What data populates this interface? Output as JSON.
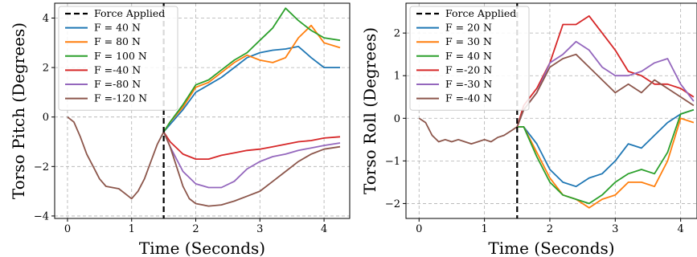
{
  "chart_data": [
    {
      "type": "line",
      "xlabel": "Time (Seconds)",
      "ylabel": "Torso Pitch (Degrees)",
      "xlim": [
        -0.2,
        4.4
      ],
      "ylim": [
        -4.1,
        4.6
      ],
      "xticks": [
        0,
        1,
        2,
        3,
        4
      ],
      "yticks": [
        -4,
        -2,
        0,
        2,
        4
      ],
      "grid": true,
      "legend_position": "top-left",
      "force_applied": {
        "label": "Force Applied",
        "x": 1.5
      },
      "series": [
        {
          "name": "F = 40 N",
          "color": "#1f77b4",
          "x": [
            1.5,
            1.6,
            1.8,
            2.0,
            2.2,
            2.4,
            2.6,
            2.8,
            3.0,
            3.2,
            3.4,
            3.6,
            3.8,
            4.0,
            4.25
          ],
          "y": [
            -0.6,
            -0.3,
            0.3,
            1.0,
            1.3,
            1.6,
            2.0,
            2.4,
            2.6,
            2.7,
            2.75,
            2.85,
            2.4,
            2.0,
            2.0
          ]
        },
        {
          "name": "F = 80 N",
          "color": "#ff7f0e",
          "x": [
            1.5,
            1.6,
            1.8,
            2.0,
            2.2,
            2.4,
            2.6,
            2.8,
            3.0,
            3.2,
            3.4,
            3.6,
            3.8,
            4.0,
            4.25
          ],
          "y": [
            -0.6,
            -0.2,
            0.4,
            1.2,
            1.4,
            1.8,
            2.2,
            2.5,
            2.3,
            2.2,
            2.4,
            3.2,
            3.7,
            3.0,
            2.8
          ]
        },
        {
          "name": "F = 100 N",
          "color": "#2ca02c",
          "x": [
            1.5,
            1.6,
            1.8,
            2.0,
            2.2,
            2.4,
            2.6,
            2.8,
            3.0,
            3.2,
            3.4,
            3.6,
            3.8,
            4.0,
            4.25
          ],
          "y": [
            -0.6,
            -0.2,
            0.5,
            1.3,
            1.5,
            1.9,
            2.3,
            2.6,
            3.1,
            3.6,
            4.4,
            3.9,
            3.5,
            3.2,
            3.1
          ]
        },
        {
          "name": "F =-40 N",
          "color": "#d62728",
          "x": [
            1.5,
            1.6,
            1.8,
            2.0,
            2.2,
            2.4,
            2.6,
            2.8,
            3.0,
            3.2,
            3.4,
            3.6,
            3.8,
            4.0,
            4.25
          ],
          "y": [
            -0.6,
            -1.0,
            -1.5,
            -1.7,
            -1.7,
            -1.55,
            -1.45,
            -1.35,
            -1.3,
            -1.2,
            -1.1,
            -1.0,
            -0.95,
            -0.85,
            -0.8
          ]
        },
        {
          "name": "F =-80 N",
          "color": "#9467bd",
          "x": [
            1.5,
            1.6,
            1.8,
            2.0,
            2.2,
            2.4,
            2.6,
            2.8,
            3.0,
            3.2,
            3.4,
            3.6,
            3.8,
            4.0,
            4.25
          ],
          "y": [
            -0.6,
            -1.2,
            -2.2,
            -2.7,
            -2.85,
            -2.85,
            -2.6,
            -2.1,
            -1.8,
            -1.6,
            -1.5,
            -1.35,
            -1.25,
            -1.15,
            -1.05
          ]
        },
        {
          "name": "F =-120 N",
          "color": "#8c564b",
          "x": [
            0,
            0.1,
            0.2,
            0.3,
            0.4,
            0.5,
            0.6,
            0.7,
            0.8,
            0.9,
            1.0,
            1.1,
            1.2,
            1.3,
            1.4,
            1.5,
            1.6,
            1.7,
            1.8,
            1.9,
            2.0,
            2.2,
            2.4,
            2.6,
            2.8,
            3.0,
            3.2,
            3.4,
            3.6,
            3.8,
            4.0,
            4.25
          ],
          "y": [
            0.0,
            -0.2,
            -0.8,
            -1.5,
            -2.0,
            -2.5,
            -2.8,
            -2.85,
            -2.9,
            -3.1,
            -3.3,
            -3.0,
            -2.5,
            -1.8,
            -1.1,
            -0.6,
            -1.2,
            -2.0,
            -2.8,
            -3.3,
            -3.5,
            -3.6,
            -3.55,
            -3.4,
            -3.2,
            -3.0,
            -2.6,
            -2.2,
            -1.8,
            -1.5,
            -1.3,
            -1.2
          ]
        }
      ]
    },
    {
      "type": "line",
      "xlabel": "Time (Seconds)",
      "ylabel": "Torso Roll (Degrees)",
      "xlim": [
        -0.2,
        4.25
      ],
      "ylim": [
        -2.35,
        2.7
      ],
      "xticks": [
        0,
        1,
        2,
        3,
        4
      ],
      "yticks": [
        -2,
        -1,
        0,
        1,
        2
      ],
      "grid": true,
      "legend_position": "top-left",
      "force_applied": {
        "label": "Force Applied",
        "x": 1.5
      },
      "series": [
        {
          "name": "F = 20 N",
          "color": "#1f77b4",
          "x": [
            1.5,
            1.6,
            1.8,
            2.0,
            2.2,
            2.4,
            2.6,
            2.8,
            3.0,
            3.2,
            3.4,
            3.6,
            3.8,
            4.0,
            4.2
          ],
          "y": [
            -0.2,
            -0.2,
            -0.6,
            -1.2,
            -1.5,
            -1.6,
            -1.4,
            -1.3,
            -1.0,
            -0.6,
            -0.7,
            -0.4,
            -0.1,
            0.1,
            0.2
          ]
        },
        {
          "name": "F = 30 N",
          "color": "#ff7f0e",
          "x": [
            1.5,
            1.6,
            1.8,
            2.0,
            2.2,
            2.4,
            2.6,
            2.8,
            3.0,
            3.2,
            3.4,
            3.6,
            3.8,
            4.0,
            4.2
          ],
          "y": [
            -0.2,
            -0.2,
            -0.8,
            -1.4,
            -1.8,
            -1.9,
            -2.1,
            -1.9,
            -1.8,
            -1.5,
            -1.5,
            -1.6,
            -1.0,
            0.0,
            -0.1
          ]
        },
        {
          "name": "F = 40 N",
          "color": "#2ca02c",
          "x": [
            1.5,
            1.6,
            1.8,
            2.0,
            2.2,
            2.4,
            2.6,
            2.8,
            3.0,
            3.2,
            3.4,
            3.6,
            3.8,
            4.0,
            4.2
          ],
          "y": [
            -0.2,
            -0.2,
            -0.9,
            -1.5,
            -1.8,
            -1.9,
            -2.0,
            -1.8,
            -1.5,
            -1.3,
            -1.2,
            -1.3,
            -0.8,
            0.1,
            0.2
          ]
        },
        {
          "name": "F =-20 N",
          "color": "#d62728",
          "x": [
            1.5,
            1.6,
            1.8,
            2.0,
            2.2,
            2.4,
            2.6,
            2.8,
            3.0,
            3.2,
            3.4,
            3.6,
            3.8,
            4.0,
            4.2
          ],
          "y": [
            -0.2,
            0.3,
            0.7,
            1.3,
            2.2,
            2.2,
            2.4,
            2.0,
            1.6,
            1.1,
            1.0,
            0.8,
            0.8,
            0.7,
            0.5
          ]
        },
        {
          "name": "F =-30 N",
          "color": "#9467bd",
          "x": [
            1.5,
            1.6,
            1.8,
            2.0,
            2.2,
            2.4,
            2.6,
            2.8,
            3.0,
            3.2,
            3.4,
            3.6,
            3.8,
            4.0,
            4.2
          ],
          "y": [
            -0.2,
            0.2,
            0.6,
            1.3,
            1.5,
            1.8,
            1.6,
            1.2,
            1.0,
            1.0,
            1.1,
            1.3,
            1.4,
            0.8,
            0.4
          ]
        },
        {
          "name": "F =-40 N",
          "color": "#8c564b",
          "x": [
            0,
            0.1,
            0.2,
            0.3,
            0.4,
            0.5,
            0.6,
            0.7,
            0.8,
            0.9,
            1.0,
            1.1,
            1.2,
            1.3,
            1.4,
            1.5,
            1.6,
            1.8,
            2.0,
            2.2,
            2.4,
            2.6,
            2.8,
            3.0,
            3.2,
            3.4,
            3.6,
            3.8,
            4.0,
            4.2
          ],
          "y": [
            0.0,
            -0.1,
            -0.4,
            -0.55,
            -0.5,
            -0.55,
            -0.5,
            -0.55,
            -0.6,
            -0.55,
            -0.5,
            -0.55,
            -0.45,
            -0.4,
            -0.3,
            -0.2,
            0.2,
            0.6,
            1.2,
            1.4,
            1.5,
            1.2,
            0.9,
            0.6,
            0.8,
            0.6,
            0.9,
            0.7,
            0.5,
            0.3
          ]
        }
      ]
    }
  ]
}
